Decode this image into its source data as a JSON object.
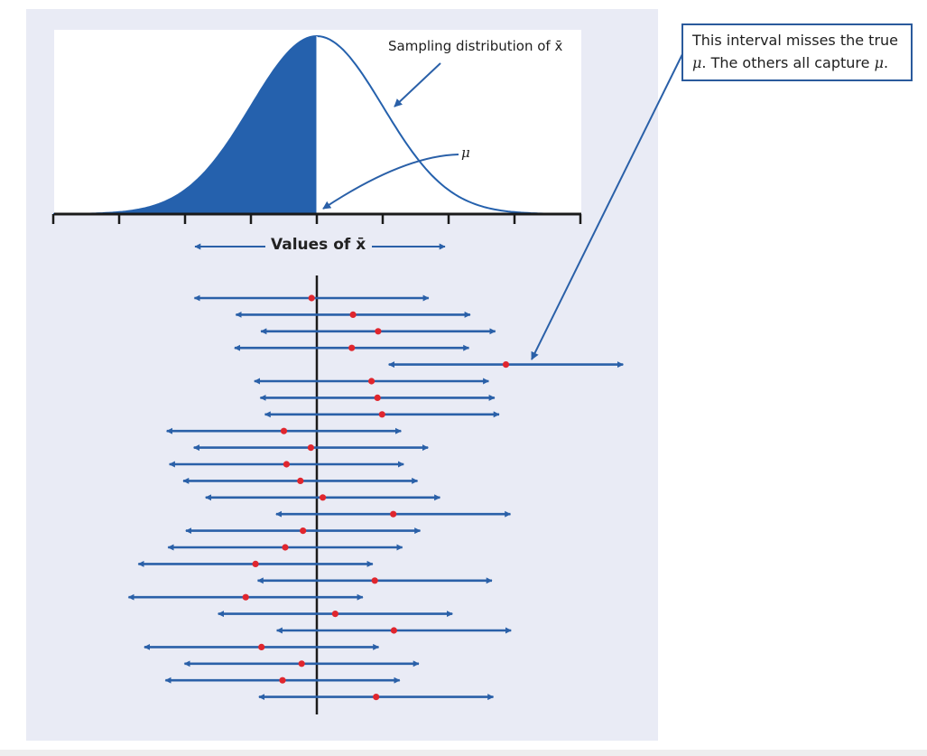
{
  "annotations": {
    "sampling_label_prefix": "Sampling distribution of",
    "sampling_label_symbol": "x̄",
    "mu_label": "μ",
    "values_label": "Values of x̄"
  },
  "callout": {
    "line1": "This interval misses the true",
    "line2_mu": "μ",
    "line2_text": ". The others all capture",
    "line2_mu_end": "μ",
    "line2_end": "."
  },
  "colors": {
    "interval_blue": "#2a60a8",
    "point_red": "#e0262e",
    "curve_fill": "#2561ad",
    "panel_bg": "#e9ebf5"
  },
  "intervals": [
    {
      "center": -0.08
    },
    {
      "center": 0.55
    },
    {
      "center": 0.93
    },
    {
      "center": 0.53
    },
    {
      "center": 2.87,
      "misses": true
    },
    {
      "center": 0.83
    },
    {
      "center": 0.92
    },
    {
      "center": 0.99
    },
    {
      "center": -0.5
    },
    {
      "center": -0.09
    },
    {
      "center": -0.46
    },
    {
      "center": -0.25
    },
    {
      "center": 0.09
    },
    {
      "center": 1.16
    },
    {
      "center": -0.21
    },
    {
      "center": -0.48
    },
    {
      "center": -0.93
    },
    {
      "center": 0.88
    },
    {
      "center": -1.08
    },
    {
      "center": 0.28
    },
    {
      "center": 1.17
    },
    {
      "center": -0.84
    },
    {
      "center": -0.23
    },
    {
      "center": -0.52
    },
    {
      "center": 0.9
    }
  ]
}
